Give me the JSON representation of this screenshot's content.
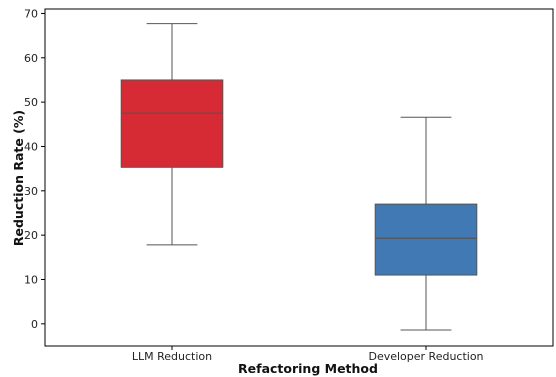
{
  "chart_data": {
    "type": "box",
    "xlabel": "Refactoring Method",
    "ylabel": "Reduction Rate (%)",
    "ylim": [
      -5,
      71
    ],
    "yticks": [
      0,
      10,
      20,
      30,
      40,
      50,
      60,
      70
    ],
    "grid": false,
    "categories": [
      "LLM Reduction",
      "Developer Reduction"
    ],
    "boxes": [
      {
        "category": "LLM Reduction",
        "whisker_low": 17.8,
        "q1": 35.3,
        "median": 47.5,
        "q3": 55.0,
        "whisker_high": 67.7,
        "color": "#d62b34"
      },
      {
        "category": "Developer Reduction",
        "whisker_low": -1.4,
        "q1": 11.0,
        "median": 19.3,
        "q3": 27.0,
        "whisker_high": 46.6,
        "color": "#4079b3"
      }
    ]
  }
}
